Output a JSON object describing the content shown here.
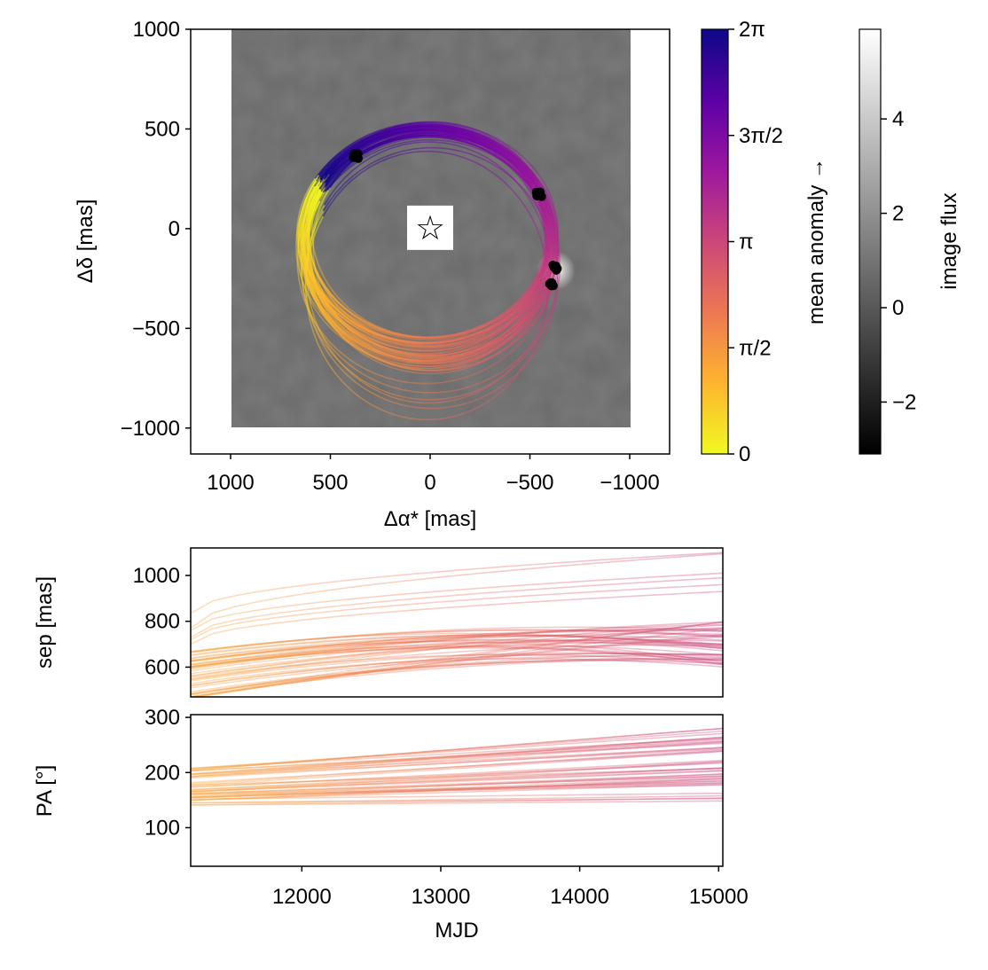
{
  "chart_data": [
    {
      "id": "sky",
      "type": "line",
      "title": "",
      "xlabel": "Δα* [mas]",
      "ylabel": "Δδ [mas]",
      "xlim": [
        1200,
        -1200
      ],
      "ylim": [
        -1130,
        1000
      ],
      "x_ticks": [
        1000,
        500,
        0,
        -500,
        -1000
      ],
      "y_ticks": [
        1000,
        500,
        0,
        -500,
        -1000
      ],
      "x_tick_labels": [
        "1000",
        "500",
        "0",
        "−500",
        "−1000"
      ],
      "y_tick_labels": [
        "1000",
        "500",
        "0",
        "−500",
        "−1000"
      ],
      "image_extent": {
        "x": [
          1000,
          -1000
        ],
        "y": [
          -1000,
          1000
        ]
      },
      "star_marker": {
        "x": 0,
        "y": 0,
        "symbol": "☆"
      },
      "orbit_model": {
        "cx": 10,
        "cy": 40,
        "a": 620,
        "b": 520,
        "angle_deg": 0,
        "spread": 0.15,
        "n_curves": 60
      },
      "observations": [
        {
          "x": 372,
          "y": 363
        },
        {
          "x": -545,
          "y": 173
        },
        {
          "x": -620,
          "y": -195
        },
        {
          "x": -610,
          "y": -275
        }
      ],
      "bright_spot": {
        "x": -630,
        "y": -210
      }
    },
    {
      "id": "colorbar-anomaly",
      "type": "heatmap",
      "label": "mean anomaly →",
      "tick_labels": [
        "0",
        "π/2",
        "π",
        "3π/2",
        "2π"
      ],
      "range": [
        0,
        6.283
      ],
      "colormap": [
        "#f0f921",
        "#fdb42f",
        "#ed7953",
        "#cc4778",
        "#9c179e",
        "#5c01a6",
        "#0d0887"
      ]
    },
    {
      "id": "colorbar-flux",
      "type": "heatmap",
      "label": "image flux",
      "range": [
        -3.1,
        5.9
      ],
      "ticks": [
        -2,
        0,
        2,
        4
      ],
      "tick_labels": [
        "−2",
        "0",
        "2",
        "4"
      ],
      "colormap": [
        "#000000",
        "#ffffff"
      ]
    },
    {
      "id": "sep",
      "type": "line",
      "xlabel": "",
      "ylabel": "sep [mas]",
      "xlim": [
        11200,
        15030
      ],
      "ylim": [
        470,
        1120
      ],
      "y_ticks": [
        600,
        800,
        1000
      ],
      "y_tick_labels": [
        "600",
        "800",
        "1000"
      ],
      "band_start": [
        460,
        750
      ],
      "band_peak": [
        640,
        820
      ],
      "band_end": [
        600,
        800
      ],
      "outliers": [
        {
          "start": 835,
          "end": 1100
        },
        {
          "start": 770,
          "end": 1095
        },
        {
          "start": 760,
          "end": 1010
        },
        {
          "start": 730,
          "end": 990
        },
        {
          "start": 720,
          "end": 960
        },
        {
          "start": 700,
          "end": 930
        }
      ]
    },
    {
      "id": "pa",
      "type": "line",
      "xlabel": "MJD",
      "ylabel": "PA [°]",
      "xlim": [
        11200,
        15030
      ],
      "ylim": [
        30,
        305
      ],
      "x_ticks": [
        12000,
        13000,
        14000,
        15000
      ],
      "x_tick_labels": [
        "12000",
        "13000",
        "14000",
        "15000"
      ],
      "y_ticks": [
        100,
        200,
        300
      ],
      "y_tick_labels": [
        "100",
        "200",
        "300"
      ],
      "band_start": [
        140,
        210
      ],
      "band_end": [
        160,
        280
      ]
    }
  ]
}
